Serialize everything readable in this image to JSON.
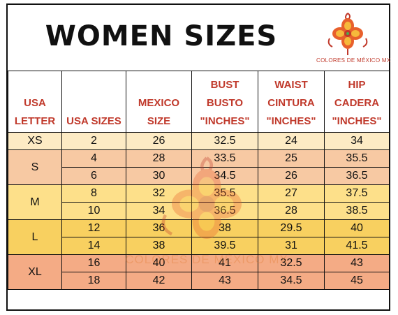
{
  "title": "WOMEN SIZES",
  "brand": "COLORES DE MÉXICO MX",
  "watermark_text": "COLORES DE MÉXICO MX",
  "icons": [
    "flower-logo-icon",
    "flower-watermark-icon"
  ],
  "colors": {
    "header_text": "#c0392b",
    "xs_row": "#fdebc4",
    "s_row": "#f7c9a3",
    "m_row": "#fde08a",
    "l_row": "#f8d060",
    "xl_row": "#f4ab85"
  },
  "headers": [
    [
      "USA",
      "LETTER"
    ],
    [
      "USA SIZES"
    ],
    [
      "MEXICO",
      "SIZE"
    ],
    [
      "BUST",
      "BUSTO",
      "\"INCHES\""
    ],
    [
      "WAIST",
      "CINTURA",
      "\"INCHES\""
    ],
    [
      "HIP",
      "CADERA",
      "\"INCHES\""
    ]
  ],
  "groups": [
    {
      "letter": "XS",
      "rows": [
        [
          "2",
          "26",
          "32.5",
          "24",
          "34"
        ]
      ]
    },
    {
      "letter": "S",
      "rows": [
        [
          "4",
          "28",
          "33.5",
          "25",
          "35.5"
        ],
        [
          "6",
          "30",
          "34.5",
          "26",
          "36.5"
        ]
      ]
    },
    {
      "letter": "M",
      "rows": [
        [
          "8",
          "32",
          "35.5",
          "27",
          "37.5"
        ],
        [
          "10",
          "34",
          "36.5",
          "28",
          "38.5"
        ]
      ]
    },
    {
      "letter": "L",
      "rows": [
        [
          "12",
          "36",
          "38",
          "29.5",
          "40"
        ],
        [
          "14",
          "38",
          "39.5",
          "31",
          "41.5"
        ]
      ]
    },
    {
      "letter": "XL",
      "rows": [
        [
          "16",
          "40",
          "41",
          "32.5",
          "43"
        ],
        [
          "18",
          "42",
          "43",
          "34.5",
          "45"
        ]
      ]
    }
  ]
}
